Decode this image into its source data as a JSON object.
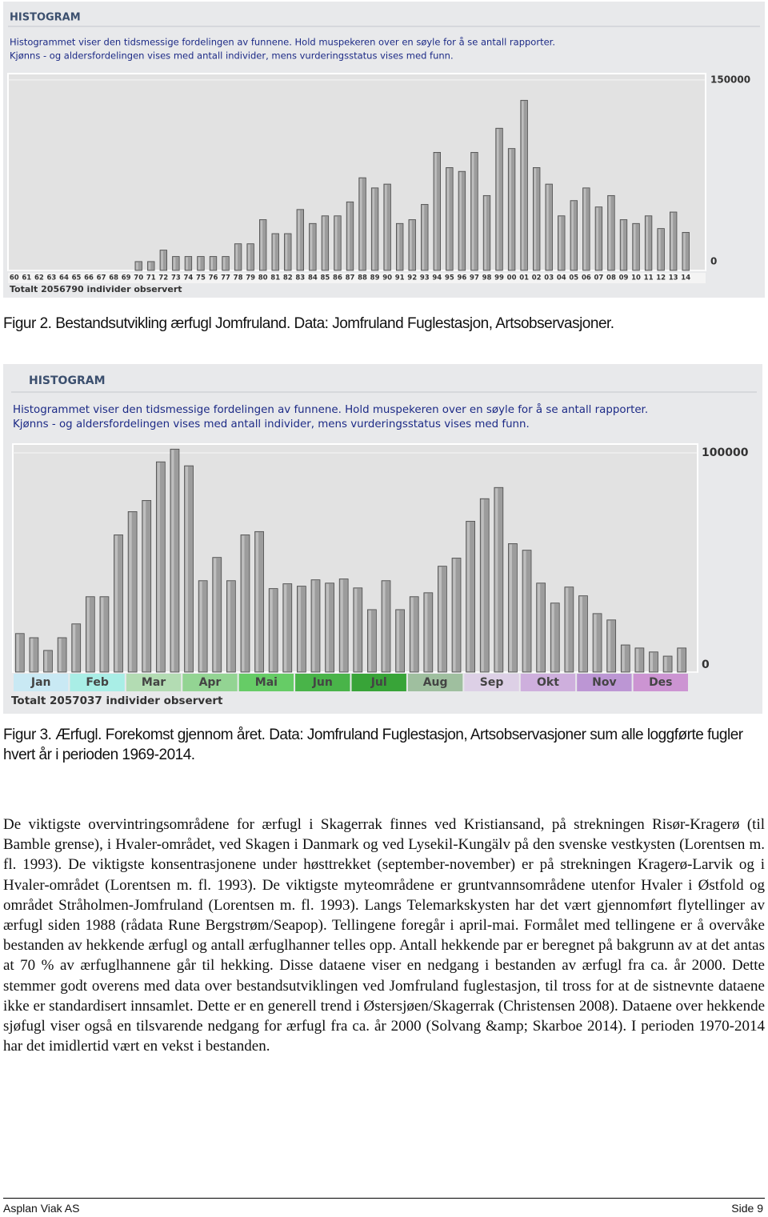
{
  "chart_data": [
    {
      "type": "bar",
      "title": "HISTOGRAM",
      "description": [
        "Histogrammet viser den tidsmessige fordelingen av funnene. Hold muspekeren over en søyle for å se antall rapporter.",
        "Kjønns - og aldersfordelingen vises med antall individer, mens vurderingsstatus vises med funn."
      ],
      "note": "Totalt 2056790 individer observert",
      "categories": [
        "60",
        "61",
        "62",
        "63",
        "64",
        "65",
        "66",
        "67",
        "68",
        "69",
        "70",
        "71",
        "72",
        "73",
        "74",
        "75",
        "76",
        "77",
        "78",
        "79",
        "80",
        "81",
        "82",
        "83",
        "84",
        "85",
        "86",
        "87",
        "88",
        "89",
        "90",
        "91",
        "92",
        "93",
        "94",
        "95",
        "96",
        "97",
        "98",
        "99",
        "00",
        "01",
        "02",
        "03",
        "04",
        "05",
        "06",
        "07",
        "08",
        "09",
        "10",
        "11",
        "12",
        "13",
        "14"
      ],
      "values": [
        0,
        0,
        0,
        0,
        0,
        0,
        0,
        0,
        0,
        0,
        7000,
        7000,
        16000,
        11000,
        11000,
        11000,
        11000,
        11000,
        21000,
        21000,
        40000,
        29000,
        29000,
        48000,
        37000,
        43000,
        43000,
        54000,
        73000,
        65000,
        68000,
        37000,
        40000,
        52000,
        93000,
        81000,
        78000,
        93000,
        59000,
        112000,
        96000,
        134000,
        81000,
        68000,
        43000,
        55000,
        65000,
        50000,
        59000,
        40000,
        37000,
        43000,
        33000,
        46000,
        30000
      ],
      "color": "#9c9c9c",
      "ylim": [
        0,
        155000
      ],
      "yticks": [
        0,
        150000
      ],
      "grid": true
    },
    {
      "type": "bar",
      "title": "HISTOGRAM",
      "description": [
        "Histogrammet viser den tidsmessige fordelingen av funnene. Hold muspekeren over en søyle for å se antall rapporter.",
        "Kjønns - og aldersfordelingen vises med antall individer, mens vurderingsstatus vises med funn."
      ],
      "note": "Totalt 2057037 individer observert",
      "categories": [
        "Jan",
        null,
        null,
        null,
        "Feb",
        null,
        null,
        null,
        "Mar",
        null,
        null,
        null,
        "Apr",
        null,
        null,
        null,
        "Mai",
        null,
        null,
        null,
        "Jun",
        null,
        null,
        null,
        "Jul",
        null,
        null,
        null,
        "Aug",
        null,
        null,
        null,
        "Sep",
        null,
        null,
        null,
        "Okt",
        null,
        null,
        null,
        "Nov",
        null,
        null,
        null,
        "Des",
        null,
        null,
        null
      ],
      "values": [
        17600,
        15700,
        9900,
        15700,
        22000,
        34400,
        34400,
        62600,
        73200,
        78300,
        95900,
        101700,
        94100,
        41700,
        52300,
        41700,
        62600,
        64100,
        38100,
        40300,
        39200,
        42100,
        40600,
        42500,
        38400,
        28500,
        41700,
        28500,
        34400,
        36200,
        48300,
        52000,
        68800,
        79100,
        84200,
        58600,
        55600,
        40600,
        31500,
        38800,
        34800,
        26700,
        23800,
        12400,
        11000,
        9200,
        7300,
        11000
      ],
      "label_colors": [
        "#c9e9f4",
        "#a9eee6",
        "#b3dcb3",
        "#93d493",
        "#66cc66",
        "#49b449",
        "#38a438",
        "#9fbf9f",
        "#ddd0e6",
        "#ceafdd",
        "#bc96d4",
        "#cc94d2"
      ],
      "color": "#9c9c9c",
      "ylim": [
        0,
        104000
      ],
      "yticks": [
        0,
        100000
      ],
      "grid": true
    }
  ],
  "captions": [
    "Figur 2. Bestandsutvikling ærfugl Jomfruland. Data: Jomfruland Fuglestasjon, Artsobservasjoner.",
    "Figur 3. Ærfugl. Forekomst gjennom året. Data: Jomfruland Fuglestasjon, Artsobservasjoner sum alle loggførte fugler hvert år i perioden 1969-2014."
  ],
  "body": {
    "paragraph": "De viktigste overvintringsområdene for ærfugl i Skagerrak finnes ved Kristiansand, på strekningen Risør-Kragerø (til Bamble grense), i Hvaler-området, ved Skagen i Danmark og ved Lysekil-Kungälv på den svenske vestkysten (Lorentsen m. fl. 1993). De viktigste konsentrasjonene under høsttrekket (september-november) er på strekningen Kragerø-Larvik og i Hvaler-området (Lorentsen m. fl. 1993). De viktigste myteområdene er gruntvannsområdene utenfor Hvaler i Østfold og området Stråholmen-Jomfruland (Lorentsen m. fl. 1993). Langs Telemarkskysten har det vært gjennomført flytellinger av ærfugl siden 1988 (rådata Rune Bergstrøm/Seapop). Tellingene foregår i april-mai. Formålet med tellingene er å overvåke bestanden av hekkende ærfugl og antall ærfuglhanner telles opp. Antall hekkende par er beregnet på bakgrunn av at det antas at 70 % av ærfuglhannene går til hekking. Disse dataene viser en nedgang i bestanden av ærfugl fra ca. år 2000. Dette stemmer godt overens med data over bestandsutviklingen ved Jomfruland fuglestasjon, til tross for at de sistnevnte dataene ikke er standardisert innsamlet. Dette er en generell trend i Østersjøen/Skagerrak (Christensen 2008). Dataene over hekkende sjøfugl viser også en tilsvarende nedgang for ærfugl fra ca. år 2000 (Solvang &amp; Skarboe 2014). I perioden 1970-2014 har det imidlertid vært en vekst i bestanden."
  },
  "footer": {
    "left": "Asplan Viak AS",
    "right": "Side 9"
  }
}
